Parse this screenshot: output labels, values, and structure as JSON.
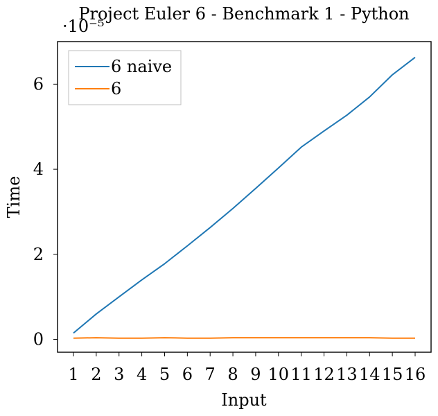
{
  "chart_data": {
    "type": "line",
    "title": "Project Euler 6 - Benchmark 1 - Python",
    "xlabel": "Input",
    "ylabel": "Time",
    "y_scale_label": "·10⁻⁵",
    "x": [
      1,
      2,
      3,
      4,
      5,
      6,
      7,
      8,
      9,
      10,
      11,
      12,
      13,
      14,
      15,
      16
    ],
    "xlim": [
      0.3,
      16.7
    ],
    "ylim": [
      -0.3,
      7
    ],
    "y_ticks": [
      0,
      2,
      4,
      6
    ],
    "grid": false,
    "legend_position": "top-left",
    "series": [
      {
        "name": "6 naive",
        "color": "#1f77b4",
        "values": [
          0.15,
          0.6,
          1.0,
          1.4,
          1.78,
          2.2,
          2.63,
          3.08,
          3.55,
          4.03,
          4.52,
          4.9,
          5.27,
          5.7,
          6.22,
          6.63
        ]
      },
      {
        "name": "6",
        "color": "#ff7f0e",
        "values": [
          0.03,
          0.04,
          0.03,
          0.03,
          0.04,
          0.03,
          0.03,
          0.04,
          0.04,
          0.04,
          0.04,
          0.04,
          0.04,
          0.04,
          0.03,
          0.03
        ]
      }
    ]
  }
}
